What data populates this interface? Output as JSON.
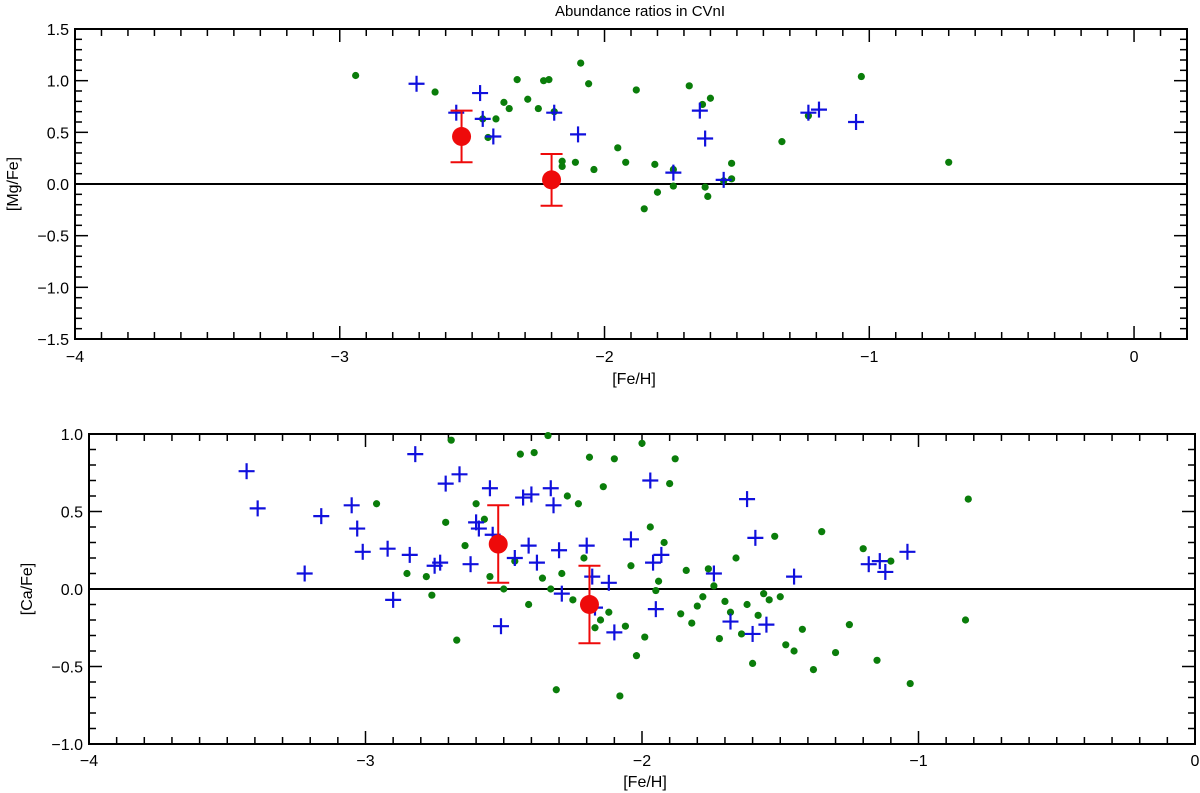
{
  "figure": {
    "title": "Abundance ratios in CVnI"
  },
  "colors": {
    "comparison_dots": "#0a7d0a",
    "comparison_crosses": "#1010dd",
    "target": "#ee0a0a",
    "axes": "#000000"
  },
  "chart_data": [
    {
      "type": "scatter",
      "title": "Abundance ratios in CVnI",
      "xlabel": "[Fe/H]",
      "ylabel": "[Mg/Fe]",
      "xlim": [
        -4.0,
        0.2
      ],
      "ylim": [
        -1.5,
        1.5
      ],
      "xticks": [
        -4,
        -3,
        -2,
        -1,
        0
      ],
      "xtick_labels": [
        "−4",
        "−3",
        "−2",
        "−1",
        "0"
      ],
      "yticks": [
        -1.5,
        -1.0,
        -0.5,
        0.0,
        0.5,
        1.0,
        1.5
      ],
      "ytick_labels": [
        "−1.5",
        "−1.0",
        "−0.5",
        "0.0",
        "0.5",
        "1.0",
        "1.5"
      ],
      "reference_line_y": 0.0,
      "series": [
        {
          "marker": "dot",
          "x": [
            -2.94,
            -2.64,
            -2.46,
            -2.44,
            -2.41,
            -2.38,
            -2.36,
            -2.33,
            -2.29,
            -2.25,
            -2.23,
            -2.21,
            -2.19,
            -2.16,
            -2.16,
            -2.11,
            -2.09,
            -2.06,
            -2.04,
            -1.95,
            -1.92,
            -1.88,
            -1.85,
            -1.81,
            -1.8,
            -1.74,
            -1.74,
            -1.68,
            -1.63,
            -1.62,
            -1.61,
            -1.6,
            -1.55,
            -1.52,
            -1.52,
            -1.33,
            -1.23,
            -1.03,
            -0.7
          ],
          "y": [
            1.05,
            0.89,
            0.63,
            0.45,
            0.63,
            0.79,
            0.73,
            1.01,
            0.82,
            0.73,
            1.0,
            1.01,
            0.7,
            0.22,
            0.17,
            0.21,
            1.17,
            0.97,
            0.14,
            0.35,
            0.21,
            0.91,
            -0.24,
            0.19,
            -0.08,
            0.14,
            -0.02,
            0.95,
            0.77,
            -0.03,
            -0.12,
            0.83,
            0.03,
            0.05,
            0.2,
            0.41,
            0.66,
            1.04,
            0.21
          ]
        },
        {
          "marker": "cross",
          "x": [
            -2.71,
            -2.56,
            -2.47,
            -2.46,
            -2.42,
            -2.19,
            -2.1,
            -1.74,
            -1.64,
            -1.62,
            -1.55,
            -1.23,
            -1.19,
            -1.05
          ],
          "y": [
            0.97,
            0.69,
            0.88,
            0.63,
            0.46,
            0.69,
            0.48,
            0.11,
            0.71,
            0.44,
            0.04,
            0.69,
            0.72,
            0.6
          ]
        },
        {
          "marker": "big-dot",
          "x": [
            -2.54,
            -2.2
          ],
          "y": [
            0.46,
            0.04
          ],
          "yerr": [
            0.25,
            0.25
          ]
        }
      ]
    },
    {
      "type": "scatter",
      "xlabel": "[Fe/H]",
      "ylabel": "[Ca/Fe]",
      "xlim": [
        -4.0,
        0.0
      ],
      "ylim": [
        -1.0,
        1.0
      ],
      "xticks": [
        -4,
        -3,
        -2,
        -1,
        0
      ],
      "xtick_labels": [
        "−4",
        "−3",
        "−2",
        "−1",
        "0"
      ],
      "yticks": [
        -1.0,
        -0.5,
        0.0,
        0.5,
        1.0
      ],
      "ytick_labels": [
        "−1.0",
        "−0.5",
        "0.0",
        "0.5",
        "1.0"
      ],
      "reference_line_y": 0.0,
      "series": [
        {
          "marker": "dot",
          "x": [
            -2.96,
            -2.85,
            -2.78,
            -2.76,
            -2.71,
            -2.69,
            -2.67,
            -2.64,
            -2.6,
            -2.57,
            -2.55,
            -2.5,
            -2.46,
            -2.44,
            -2.41,
            -2.39,
            -2.36,
            -2.34,
            -2.33,
            -2.31,
            -2.29,
            -2.27,
            -2.25,
            -2.23,
            -2.21,
            -2.19,
            -2.17,
            -2.15,
            -2.14,
            -2.12,
            -2.1,
            -2.08,
            -2.06,
            -2.04,
            -2.02,
            -2.0,
            -1.99,
            -1.97,
            -1.95,
            -1.94,
            -1.92,
            -1.9,
            -1.88,
            -1.86,
            -1.84,
            -1.82,
            -1.8,
            -1.78,
            -1.76,
            -1.74,
            -1.72,
            -1.7,
            -1.68,
            -1.66,
            -1.64,
            -1.62,
            -1.6,
            -1.58,
            -1.56,
            -1.54,
            -1.52,
            -1.5,
            -1.48,
            -1.45,
            -1.42,
            -1.38,
            -1.35,
            -1.3,
            -1.25,
            -1.2,
            -1.15,
            -1.1,
            -1.03,
            -0.83,
            -0.82
          ],
          "y": [
            0.55,
            0.1,
            0.08,
            -0.04,
            0.43,
            0.96,
            -0.33,
            0.28,
            0.55,
            0.45,
            0.08,
            0.0,
            0.18,
            0.87,
            -0.1,
            0.88,
            0.07,
            0.99,
            0.0,
            -0.65,
            0.1,
            0.6,
            -0.07,
            0.55,
            0.2,
            0.85,
            -0.25,
            -0.2,
            0.66,
            -0.15,
            0.84,
            -0.69,
            -0.24,
            0.15,
            -0.43,
            0.94,
            -0.31,
            0.4,
            -0.01,
            0.05,
            0.3,
            0.68,
            0.84,
            -0.16,
            0.12,
            -0.22,
            -0.11,
            -0.05,
            0.13,
            0.02,
            -0.32,
            -0.08,
            -0.15,
            0.2,
            -0.29,
            -0.1,
            -0.48,
            -0.17,
            -0.03,
            -0.07,
            0.34,
            -0.05,
            -0.36,
            -0.4,
            -0.26,
            -0.52,
            0.37,
            -0.41,
            -0.23,
            0.26,
            -0.46,
            0.18,
            -0.61,
            -0.2,
            0.58
          ]
        },
        {
          "marker": "cross",
          "x": [
            -3.43,
            -3.39,
            -3.22,
            -3.16,
            -3.05,
            -3.03,
            -3.01,
            -2.92,
            -2.9,
            -2.84,
            -2.82,
            -2.75,
            -2.73,
            -2.71,
            -2.66,
            -2.62,
            -2.6,
            -2.59,
            -2.55,
            -2.54,
            -2.51,
            -2.46,
            -2.43,
            -2.41,
            -2.4,
            -2.38,
            -2.33,
            -2.32,
            -2.3,
            -2.29,
            -2.2,
            -2.18,
            -2.17,
            -2.12,
            -2.1,
            -2.04,
            -1.97,
            -1.96,
            -1.95,
            -1.93,
            -1.74,
            -1.68,
            -1.62,
            -1.6,
            -1.59,
            -1.55,
            -1.45,
            -1.18,
            -1.14,
            -1.12,
            -1.04
          ],
          "y": [
            0.76,
            0.52,
            0.1,
            0.47,
            0.54,
            0.39,
            0.24,
            0.26,
            -0.07,
            0.22,
            0.87,
            0.15,
            0.17,
            0.68,
            0.74,
            0.16,
            0.43,
            0.39,
            0.65,
            0.35,
            -0.24,
            0.2,
            0.59,
            0.28,
            0.61,
            0.17,
            0.65,
            0.54,
            0.25,
            -0.03,
            0.28,
            0.08,
            -0.12,
            0.04,
            -0.28,
            0.32,
            0.7,
            0.17,
            -0.13,
            0.22,
            0.1,
            -0.21,
            0.58,
            -0.29,
            0.33,
            -0.23,
            0.08,
            0.16,
            0.18,
            0.11,
            0.24
          ]
        },
        {
          "marker": "big-dot",
          "x": [
            -2.52,
            -2.19
          ],
          "y": [
            0.29,
            -0.1
          ],
          "yerr": [
            0.25,
            0.25
          ]
        }
      ]
    }
  ]
}
